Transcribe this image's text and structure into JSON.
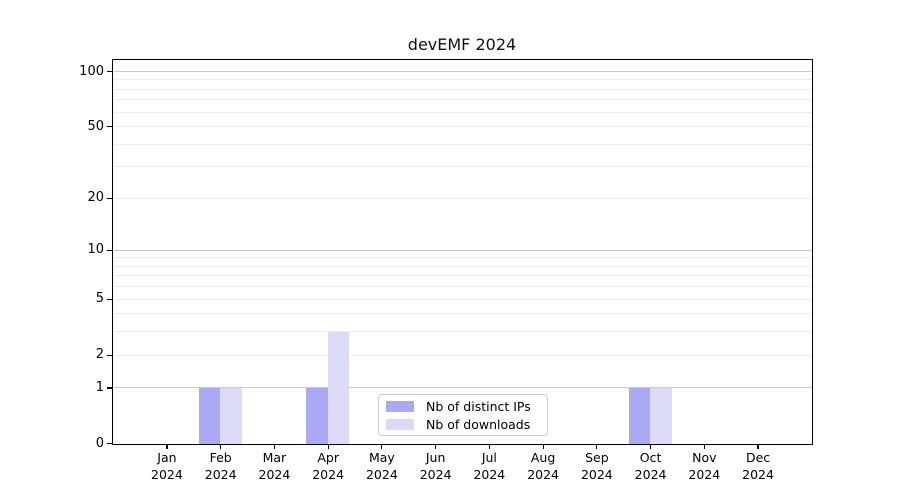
{
  "chart_data": {
    "type": "bar",
    "title": "devEMF 2024",
    "categories": [
      "Jan",
      "Feb",
      "Mar",
      "Apr",
      "May",
      "Jun",
      "Jul",
      "Aug",
      "Sep",
      "Oct",
      "Nov",
      "Dec"
    ],
    "year_label": "2024",
    "series": [
      {
        "name": "Nb of distinct IPs",
        "color": "#a9a9f4",
        "values": [
          0,
          1,
          0,
          1,
          0,
          0,
          0,
          0,
          0,
          1,
          0,
          0
        ]
      },
      {
        "name": "Nb of downloads",
        "color": "#dbdbf8",
        "values": [
          0,
          1,
          0,
          3,
          0,
          0,
          0,
          0,
          0,
          1,
          0,
          0
        ]
      }
    ],
    "yticks": [
      0,
      1,
      2,
      5,
      10,
      20,
      50,
      100
    ],
    "scale": "log1p",
    "ylim": [
      0,
      115
    ],
    "grid": {
      "major": [
        1,
        10,
        100
      ],
      "minor": [
        2,
        3,
        4,
        5,
        6,
        7,
        8,
        9,
        20,
        30,
        40,
        50,
        60,
        70,
        80,
        90
      ]
    },
    "grid_major_color": "#c9c9c9",
    "grid_minor_color": "#ededed",
    "axis_color": "#000000",
    "legend_position": "bottom-center"
  }
}
